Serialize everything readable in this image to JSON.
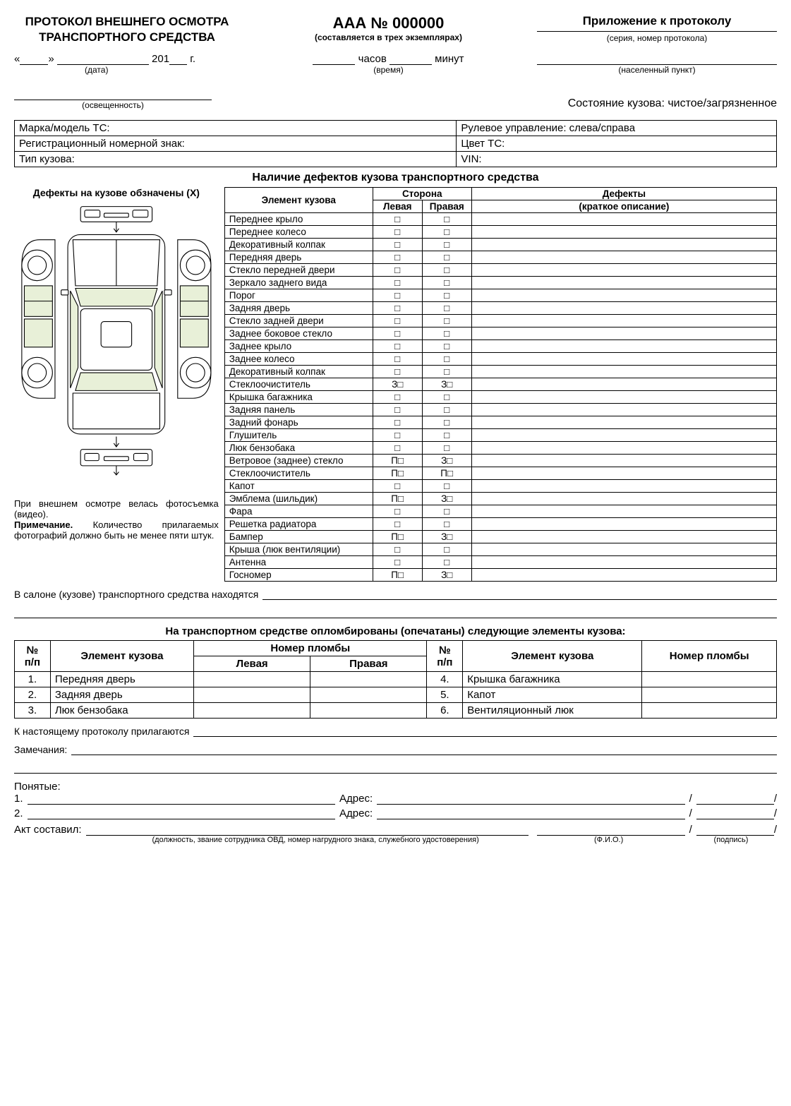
{
  "header": {
    "left_title": "ПРОТОКОЛ ВНЕШНЕГО ОСМОТРА ТРАНСПОРТНОГО СРЕДСТВА",
    "center_num": "ААА № 000000",
    "center_sub": "(составляется в трех экземплярах)",
    "right_title": "Приложение к протоколу",
    "right_sub": "(серия, номер протокола)"
  },
  "date_row": {
    "year_prefix": "201",
    "year_suffix": "г.",
    "date_label": "(дата)",
    "hours": "часов",
    "minutes": "минут",
    "time_label": "(время)",
    "loc_label": "(населенный пункт)"
  },
  "light": {
    "label": "(освещенность)"
  },
  "body_state": "Состояние кузова: чистое/загрязненное",
  "info": {
    "r1c1": "Марка/модель ТС:",
    "r1c2": "Рулевое управление: слева/справа",
    "r2c1": "Регистрационный номерной знак:",
    "r2c2": "Цвет ТС:",
    "r3c1": "Тип кузова:",
    "r3c2": "VIN:"
  },
  "defects_title": "Наличие дефектов кузова транспортного средства",
  "diagram": {
    "title": "Дефекты на кузове обзначены (Х)",
    "note1": "При внешнем осмотре велась фотосъемка (видео).",
    "note2_bold": "Примечание.",
    "note2_rest": " Количество прилагаемых фотографий должно быть не менее пяти штук.",
    "fill": "#ffffff",
    "stroke": "#000000",
    "glass": "#e8f0d8"
  },
  "def_headers": {
    "elem": "Элемент кузова",
    "side": "Сторона",
    "left": "Левая",
    "right": "Правая",
    "def": "Дефекты",
    "def_sub": "(краткое описание)"
  },
  "def_rows": [
    {
      "name": "Переднее крыло",
      "l": "□",
      "r": "□"
    },
    {
      "name": "Переднее колесо",
      "l": "□",
      "r": "□"
    },
    {
      "name": "Декоративный колпак",
      "l": "□",
      "r": "□"
    },
    {
      "name": "Передняя дверь",
      "l": "□",
      "r": "□"
    },
    {
      "name": "Стекло передней двери",
      "l": "□",
      "r": "□"
    },
    {
      "name": "Зеркало заднего вида",
      "l": "□",
      "r": "□"
    },
    {
      "name": "Порог",
      "l": "□",
      "r": "□"
    },
    {
      "name": "Задняя дверь",
      "l": "□",
      "r": "□"
    },
    {
      "name": "Стекло задней двери",
      "l": "□",
      "r": "□"
    },
    {
      "name": "Заднее боковое стекло",
      "l": "□",
      "r": "□"
    },
    {
      "name": "Заднее крыло",
      "l": "□",
      "r": "□"
    },
    {
      "name": "Заднее колесо",
      "l": "□",
      "r": "□"
    },
    {
      "name": "Декоративный колпак",
      "l": "□",
      "r": "□"
    },
    {
      "name": "Стеклоочиститель",
      "l": "З□",
      "r": "З□"
    },
    {
      "name": "Крышка багажника",
      "l": "□",
      "r": "□"
    },
    {
      "name": "Задняя панель",
      "l": "□",
      "r": "□"
    },
    {
      "name": "Задний фонарь",
      "l": "□",
      "r": "□"
    },
    {
      "name": "Глушитель",
      "l": "□",
      "r": "□"
    },
    {
      "name": "Люк бензобака",
      "l": "□",
      "r": "□"
    },
    {
      "name": "Ветровое (заднее) стекло",
      "l": "П□",
      "r": "З□"
    },
    {
      "name": "Стеклоочиститель",
      "l": "П□",
      "r": "П□"
    },
    {
      "name": "Капот",
      "l": "□",
      "r": "□"
    },
    {
      "name": "Эмблема (шильдик)",
      "l": "П□",
      "r": "З□"
    },
    {
      "name": "Фара",
      "l": "□",
      "r": "□"
    },
    {
      "name": "Решетка радиатора",
      "l": "□",
      "r": "□"
    },
    {
      "name": "Бампер",
      "l": "П□",
      "r": "З□"
    },
    {
      "name": "Крыша (люк вентиляции)",
      "l": "□",
      "r": "□"
    },
    {
      "name": "Антенна",
      "l": "□",
      "r": "□"
    },
    {
      "name": "Госномер",
      "l": "П□",
      "r": "З□"
    }
  ],
  "salon_text": "В салоне (кузове) транспортного средства находятся",
  "seal_title": "На транспортном средстве опломбированы (опечатаны) следующие элементы кузова:",
  "seal_headers": {
    "n": "№ п/п",
    "elem": "Элемент кузова",
    "seal": "Номер пломбы",
    "left": "Левая",
    "right": "Правая"
  },
  "seal_rows_left": [
    {
      "n": "1.",
      "name": "Передняя дверь"
    },
    {
      "n": "2.",
      "name": "Задняя дверь"
    },
    {
      "n": "3.",
      "name": "Люк бензобака"
    }
  ],
  "seal_rows_right": [
    {
      "n": "4.",
      "name": "Крышка багажника"
    },
    {
      "n": "5.",
      "name": "Капот"
    },
    {
      "n": "6.",
      "name": "Вентиляционный люк"
    }
  ],
  "attach": "К настоящему протоколу прилагаются",
  "notes": "Замечания:",
  "witnesses": "Понятые:",
  "w1": "1.",
  "w2": "2.",
  "addr": "Адрес:",
  "compiler": "Акт составил:",
  "compiler_sub1": "(должность, звание сотрудника ОВД, номер нагрудного знака, служебного удостоверения)",
  "compiler_sub2": "(Ф.И.О.)",
  "compiler_sub3": "(подпись)"
}
